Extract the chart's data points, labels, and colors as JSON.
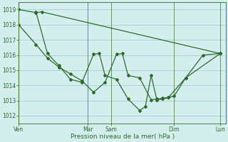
{
  "xlabel": "Pression niveau de la mer( hPa )",
  "bg_color": "#d4eeed",
  "grid_color": "#aacfce",
  "line_color": "#2d6b2d",
  "ylim": [
    1011.5,
    1019.5
  ],
  "yticks": [
    1012,
    1013,
    1014,
    1015,
    1016,
    1017,
    1018,
    1019
  ],
  "day_labels": [
    "Ven",
    "",
    "",
    "Mar",
    "Sam",
    "",
    "",
    "Dim",
    "",
    "Lun"
  ],
  "day_positions": [
    0,
    4,
    8,
    12,
    16,
    20,
    24,
    28,
    32,
    36
  ],
  "xtick_labels": [
    "Ven",
    "Mar",
    "Sam",
    "Dim",
    "Lun"
  ],
  "xtick_pos": [
    0,
    12,
    16,
    27,
    35
  ],
  "xlim": [
    0,
    36
  ],
  "series": [
    [
      1019.0,
      1018.8,
      1018.85,
      1016.1
    ],
    [
      1018.0,
      1016.7,
      1015.8,
      1015.2,
      1014.75,
      1014.3,
      1013.55,
      1014.2,
      1016.05,
      1016.1,
      1014.65,
      1014.5,
      1013.05,
      1013.1,
      1013.15,
      1013.2,
      1014.5,
      1016.0,
      1016.1
    ],
    [
      1018.85,
      1016.1,
      1015.3,
      1014.4,
      1014.2,
      1016.05,
      1016.1,
      1014.65,
      1014.4,
      1013.1,
      1012.35,
      1012.6,
      1014.65,
      1013.05,
      1013.1,
      1013.2,
      1013.3,
      1014.5,
      1016.1
    ]
  ],
  "series_x": [
    [
      0,
      3,
      4,
      35
    ],
    [
      0,
      3,
      5,
      7,
      9,
      11,
      13,
      15,
      17,
      18,
      19,
      21,
      23,
      24,
      25,
      26,
      29,
      32,
      35
    ],
    [
      3,
      5,
      7,
      9,
      11,
      13,
      14,
      15,
      17,
      19,
      21,
      22,
      23,
      24,
      25,
      26,
      27,
      29,
      35
    ]
  ]
}
